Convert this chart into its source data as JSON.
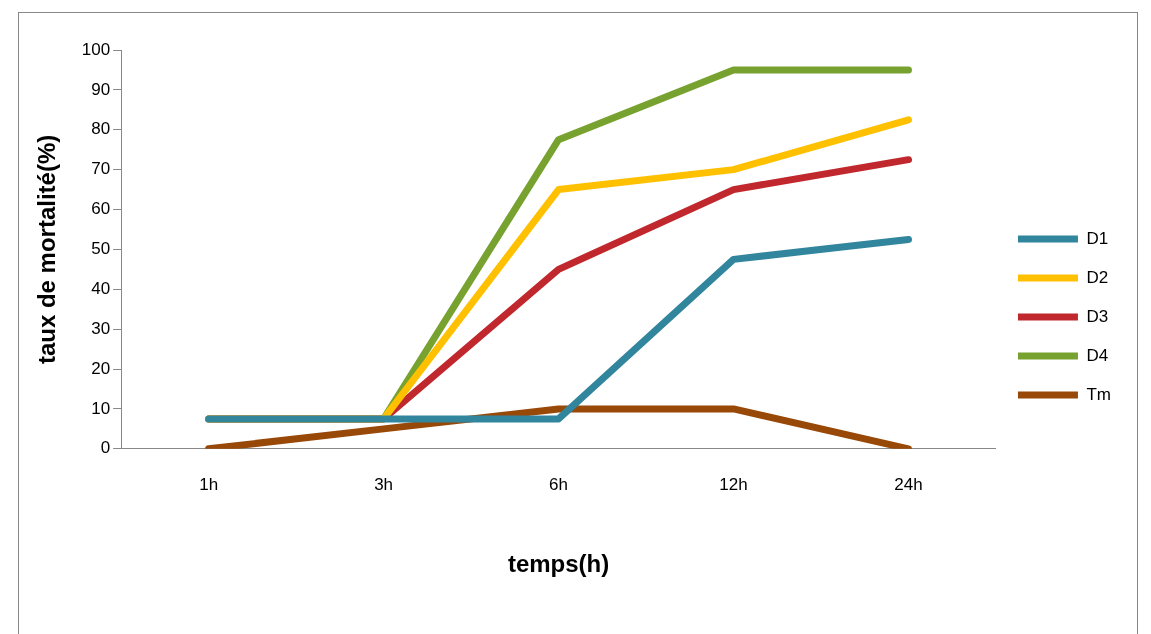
{
  "chart_data": {
    "type": "line",
    "xlabel": "temps(h)",
    "ylabel": "taux de mortalité(%)",
    "categories": [
      "1h",
      "3h",
      "6h",
      "12h",
      "24h"
    ],
    "series": [
      {
        "name": "D1",
        "color": "#31859c",
        "values": [
          7.5,
          7.5,
          7.5,
          47.5,
          52.5
        ]
      },
      {
        "name": "D2",
        "color": "#ffc000",
        "values": [
          7.5,
          7.5,
          65,
          70,
          82.5
        ]
      },
      {
        "name": "D3",
        "color": "#c0282d",
        "values": [
          7.5,
          7.5,
          45,
          65,
          72.5
        ]
      },
      {
        "name": "D4",
        "color": "#77a22f",
        "values": [
          7.5,
          7.5,
          77.5,
          95,
          95
        ]
      },
      {
        "name": "Tm",
        "color": "#984807",
        "values": [
          0,
          5,
          10,
          10,
          0
        ]
      }
    ],
    "ylim": [
      0,
      100
    ],
    "yticks": [
      0,
      10,
      20,
      30,
      40,
      50,
      60,
      70,
      80,
      90,
      100
    ],
    "grid": false,
    "legend": "right",
    "marker": "none",
    "line_style": "solid"
  }
}
